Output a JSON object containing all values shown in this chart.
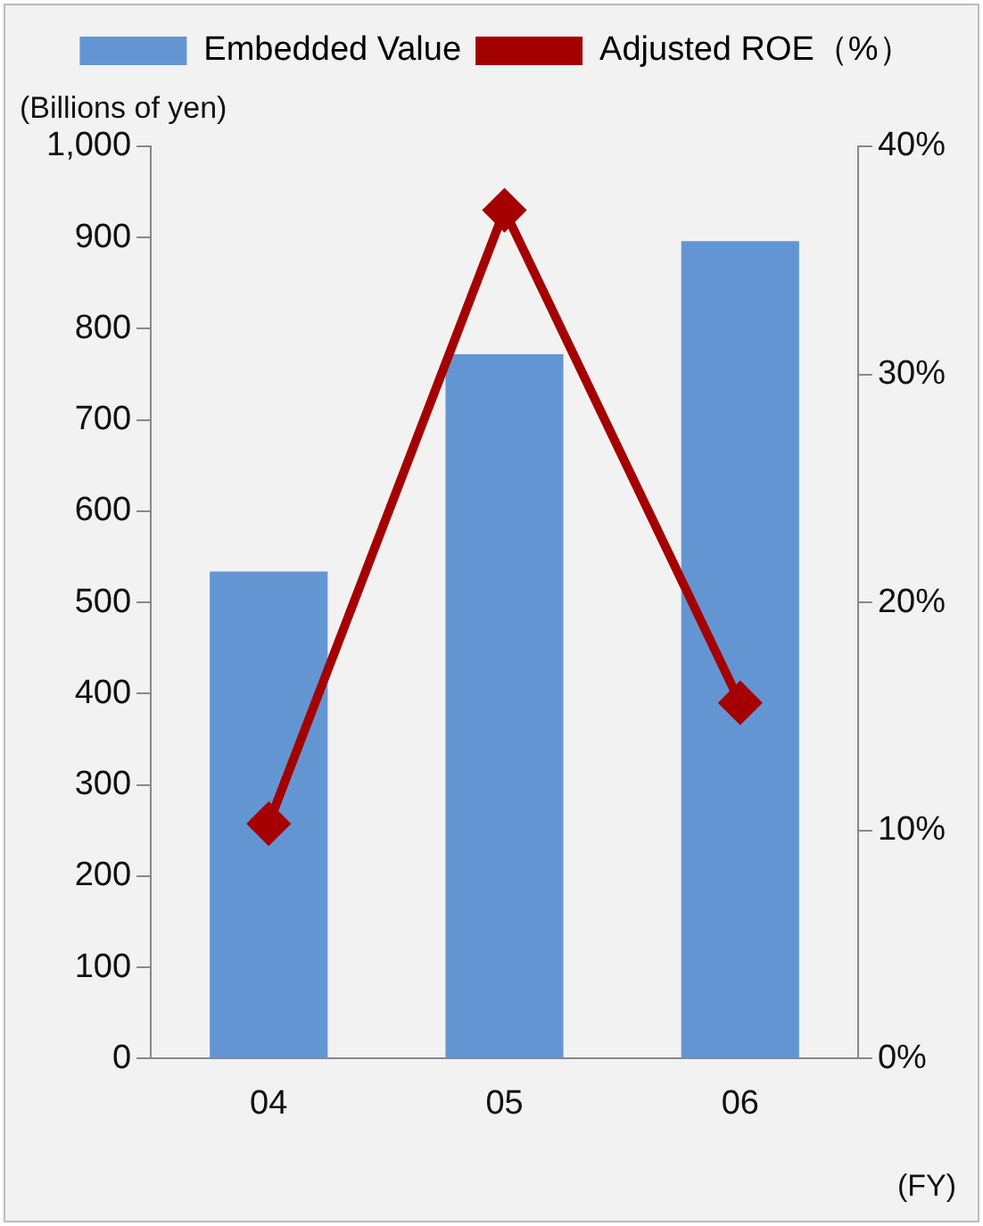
{
  "chart_data": {
    "type": "bar",
    "ylabel": "(Billions of yen)",
    "categories": [
      "04",
      "05",
      "06"
    ],
    "series": [
      {
        "name": "Embedded Value",
        "color": "#6495d3",
        "values": [
          534,
          772,
          896
        ]
      },
      {
        "name": "Adjusted ROE（%）",
        "type": "line",
        "axis": "y2",
        "color": "#a50000",
        "marker": "diamond",
        "values": [
          10.3,
          37.2,
          15.6
        ]
      }
    ],
    "ylim": [
      0,
      1000
    ],
    "yticks": [
      0,
      100,
      200,
      300,
      400,
      500,
      600,
      700,
      800,
      900,
      {
        "value": 1000,
        "label": "1,000"
      }
    ],
    "y2lim": [
      0,
      40
    ],
    "y2ticks": [
      {
        "value": 0,
        "label": "0%"
      },
      {
        "value": 10,
        "label": "10%"
      },
      {
        "value": 20,
        "label": "20%"
      },
      {
        "value": 30,
        "label": "30%"
      },
      {
        "value": 40,
        "label": "40%"
      }
    ],
    "grid": false,
    "legend": "top",
    "annotations": [
      "(FY)"
    ]
  }
}
